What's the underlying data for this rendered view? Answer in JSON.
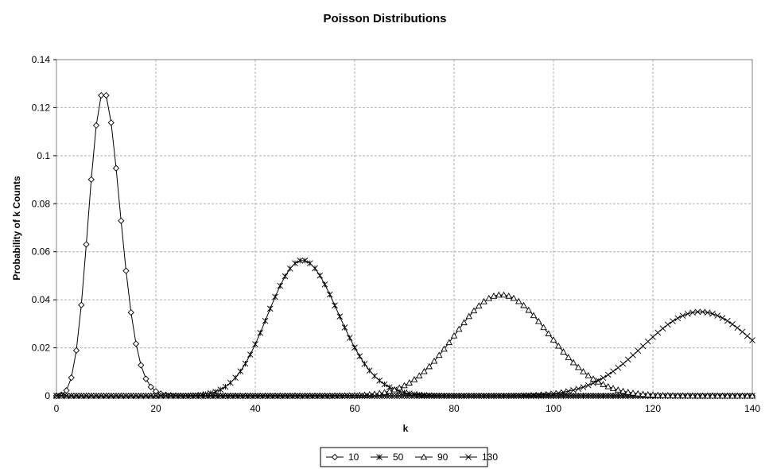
{
  "chart_data": {
    "type": "line",
    "title": "Poisson Distributions",
    "xlabel": "k",
    "ylabel": "Probability of k Counts",
    "xlim": [
      0,
      140
    ],
    "ylim": [
      0,
      0.14
    ],
    "x_ticks": [
      "0",
      "20",
      "40",
      "60",
      "80",
      "100",
      "120",
      "140"
    ],
    "y_ticks": [
      "0",
      "0.02",
      "0.04",
      "0.06",
      "0.08",
      "0.1",
      "0.12",
      "0.14"
    ],
    "grid": true,
    "legend_position": "bottom-center",
    "x_step": 1,
    "series": [
      {
        "name": "10",
        "marker": "diamond",
        "lambda": 10
      },
      {
        "name": "50",
        "marker": "asterisk",
        "lambda": 50
      },
      {
        "name": "90",
        "marker": "triangle",
        "lambda": 90
      },
      {
        "name": "130",
        "marker": "x",
        "lambda": 130
      }
    ],
    "line_color": "#000000",
    "grid_color": "#b0b0b0"
  }
}
